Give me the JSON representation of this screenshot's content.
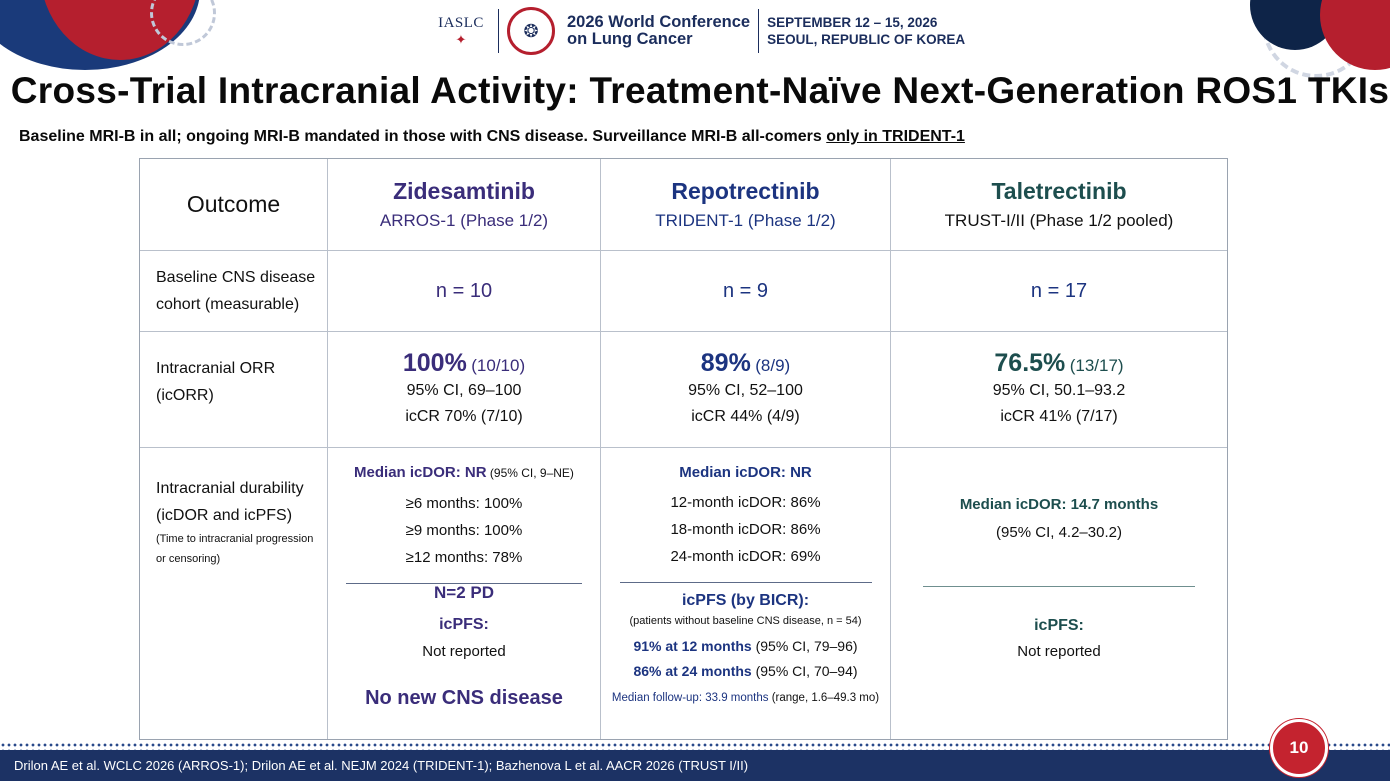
{
  "header": {
    "iaslc": "IASLC",
    "conference_line1": "2026 World Conference",
    "conference_line2": "on Lung Cancer",
    "dates": "SEPTEMBER 12 – 15, 2026",
    "location": "SEOUL, REPUBLIC OF KOREA"
  },
  "slide": {
    "title": "Cross-Trial Intracranial Activity: Treatment-Naïve Next-Generation ROS1 TKIs",
    "subtitle_main": "Baseline MRI-B in all; ongoing MRI-B mandated in those with CNS disease. Surveillance MRI-B all-comers ",
    "subtitle_underlined": "only in TRIDENT-1",
    "page_number": "10",
    "footer": "Drilon AE et al. WCLC 2026 (ARROS-1); Drilon AE et al. NEJM 2024 (TRIDENT-1); Bazhenova L et al. AACR 2026 (TRUST I/II)"
  },
  "colors": {
    "zidesamtinib": "#3a2d7a",
    "repotrectinib": "#1c3480",
    "taletrectinib": "#1d4e4e",
    "footer": "#1c3264",
    "badge": "#c4232f"
  },
  "table": {
    "header_outcome": "Outcome",
    "columns": [
      {
        "drug": "Zidesamtinib",
        "trial": "ARROS-1  (Phase 1/2)"
      },
      {
        "drug": "Repotrectinib",
        "trial": "TRIDENT-1  (Phase 1/2)"
      },
      {
        "drug": "Taletrectinib",
        "trial": "TRUST-I/II  (Phase 1/2 pooled)"
      }
    ],
    "row_baseline": {
      "label_1": "Baseline CNS disease",
      "label_2": "cohort (measurable)",
      "values": [
        "n = 10",
        "n = 9",
        "n = 17"
      ]
    },
    "row_orr": {
      "label_1": "Intracranial ORR",
      "label_2": "(icORR)",
      "cells": [
        {
          "pct": "100%",
          "frac": "(10/10)",
          "ci": "95% CI, 69–100",
          "cr": "icCR 70% (7/10)"
        },
        {
          "pct": "89%",
          "frac": "(8/9)",
          "ci": "95% CI, 52–100",
          "cr": "icCR 44% (4/9)"
        },
        {
          "pct": "76.5%",
          "frac": "(13/17)",
          "ci": "95% CI, 50.1–93.2",
          "cr": "icCR 41% (7/17)"
        }
      ]
    },
    "row_durability": {
      "label_1": "Intracranial durability",
      "label_2": "(icDOR and icPFS)",
      "note_1": "(Time to intracranial progression",
      "note_2": "or censoring)",
      "zide": {
        "dor_head": "Median icDOR: NR",
        "dor_ci": " (95% CI, 9–NE)",
        "l1": "≥6 months: 100%",
        "l2": "≥9 months: 100%",
        "l3": "≥12 months: 78%",
        "pd": "N=2 PD",
        "pfs_head": "icPFS:",
        "pfs_val": "Not reported",
        "new": "No new CNS disease"
      },
      "repo": {
        "dor_head": "Median icDOR: NR",
        "l1": "12-month icDOR:  86%",
        "l2": "18-month icDOR:  86%",
        "l3": "24-month icDOR:  69%",
        "pfs_head": "icPFS (by BICR):",
        "pfs_note": "(patients without baseline CNS disease, n = 54)",
        "p12_b": "91% at 12 months",
        "p12_ci": " (95% CI, 79–96)",
        "p24_b": "86% at 24 months",
        "p24_ci": " (95% CI, 70–94)",
        "fu_b": "Median follow-up: 33.9 months",
        "fu_r": " (range, 1.6–49.3 mo)"
      },
      "tale": {
        "dor_head": "Median icDOR: 14.7 months",
        "dor_ci": "(95% CI, 4.2–30.2)",
        "pfs_head": "icPFS:",
        "pfs_val": "Not reported"
      }
    }
  }
}
